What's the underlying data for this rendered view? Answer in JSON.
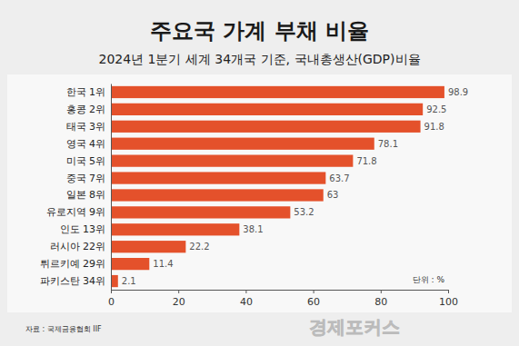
{
  "chart_data": {
    "type": "bar",
    "orientation": "horizontal",
    "title": "주요국 가계 부채 비율",
    "subtitle": "2024년 1분기 세계 34개국 기준, 국내총생산(GDP)비율",
    "categories": [
      "한국 1위",
      "홍콩 2위",
      "태국 3위",
      "영국 4위",
      "미국 5위",
      "중국 7위",
      "일본 8위",
      "유로지역 9위",
      "인도 13위",
      "러시아 22위",
      "튀르키예 29위",
      "파키스탄 34위"
    ],
    "values": [
      98.9,
      92.5,
      91.8,
      78.1,
      71.8,
      63.7,
      63,
      53.2,
      38.1,
      22.2,
      11.4,
      2.1
    ],
    "color": "#e4512b",
    "xlim": [
      0,
      100
    ],
    "xticks": [
      0,
      20,
      40,
      60,
      80,
      100
    ],
    "grid": false,
    "data_labels": true,
    "unit_label": "단위 : %",
    "source": "자료 : 국제금융협회 IIF",
    "logo": "경제포커스"
  }
}
